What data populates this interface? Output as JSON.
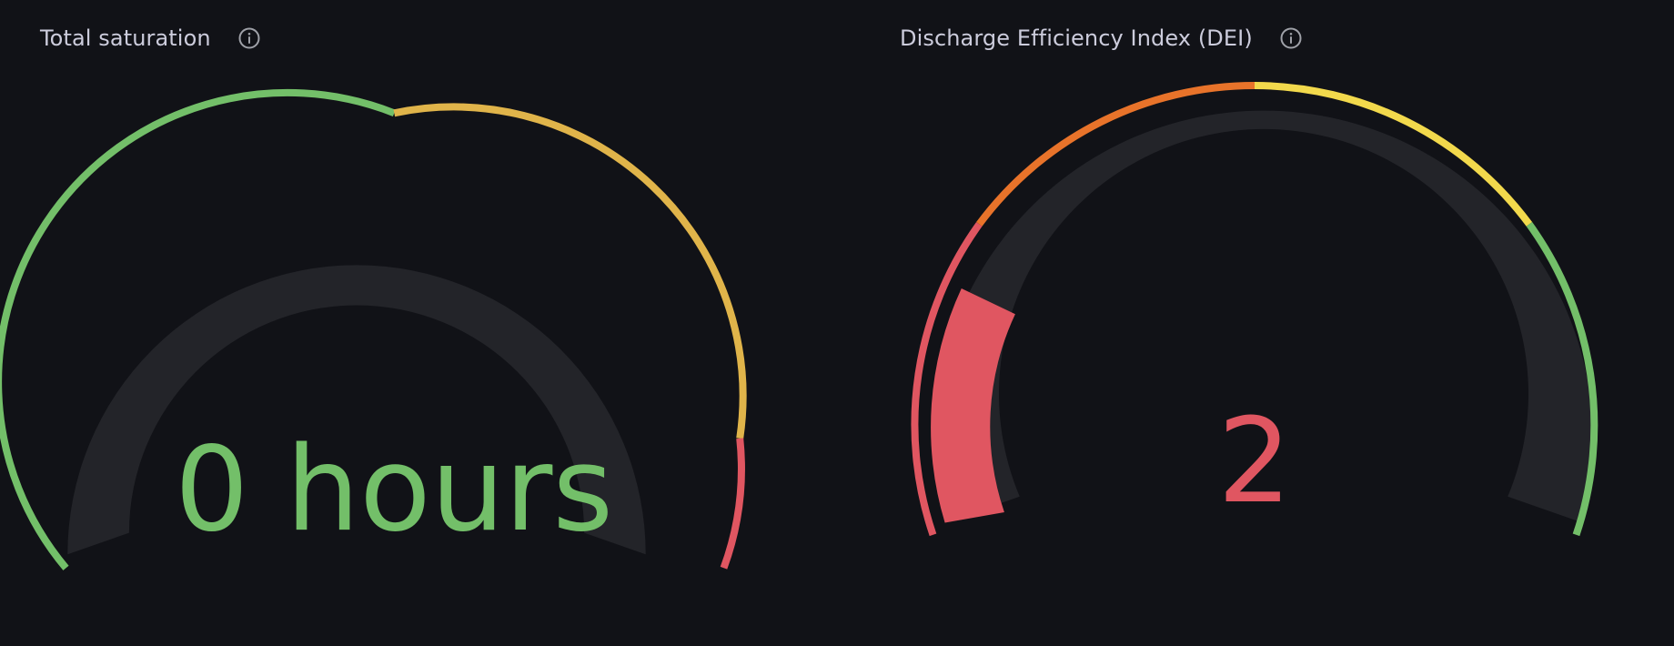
{
  "panels": [
    {
      "title": "Total saturation",
      "info_icon": "info-circle-icon",
      "value_text": "0 hours",
      "value_color": "#73bf69",
      "gauge_fill_fraction": 0,
      "threshold_colors": [
        "#73bf69",
        "#e0b44a",
        "#e05661"
      ]
    },
    {
      "title": "Discharge Efficiency Index (DEI)",
      "info_icon": "info-circle-icon",
      "value_text": "2",
      "value_color": "#e05661",
      "gauge_fill_fraction": 0.08,
      "threshold_colors": [
        "#e05661",
        "#e8732a",
        "#f2d94c",
        "#73bf69"
      ]
    }
  ],
  "colors": {
    "background": "#111217",
    "gauge_track": "#232429",
    "title_text": "#ccccdc"
  }
}
